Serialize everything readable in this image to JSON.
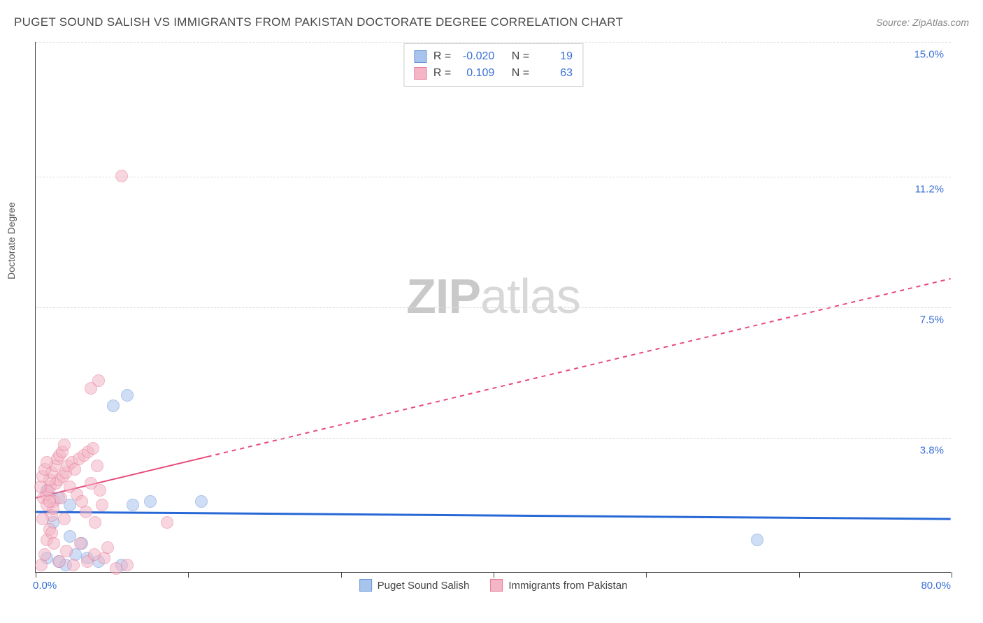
{
  "header": {
    "title": "PUGET SOUND SALISH VS IMMIGRANTS FROM PAKISTAN DOCTORATE DEGREE CORRELATION CHART",
    "source": "Source: ZipAtlas.com"
  },
  "chart": {
    "type": "scatter",
    "ylabel": "Doctorate Degree",
    "xlim": [
      0,
      80
    ],
    "ylim": [
      0,
      15
    ],
    "xlabel_min": "0.0%",
    "xlabel_max": "80.0%",
    "yticks": [
      {
        "value": 3.8,
        "label": "3.8%"
      },
      {
        "value": 7.5,
        "label": "7.5%"
      },
      {
        "value": 11.2,
        "label": "11.2%"
      },
      {
        "value": 15.0,
        "label": "15.0%"
      }
    ],
    "xticks_minor": [
      0,
      13.3,
      26.7,
      40,
      53.3,
      66.7,
      80
    ],
    "background_color": "#ffffff",
    "grid_color": "#dddddd",
    "series": [
      {
        "name": "Puget Sound Salish",
        "fill_color": "#a8c4ec",
        "fill_opacity": 0.55,
        "stroke_color": "#6a96d9",
        "trend_color": "#2768d6",
        "trend_width": 3,
        "trend_dash": "none",
        "trend": {
          "x1": 0,
          "y1": 1.7,
          "x2": 80,
          "y2": 1.5
        },
        "marker_radius": 9,
        "R": "-0.020",
        "N": "19",
        "points": [
          {
            "x": 1.0,
            "y": 0.4
          },
          {
            "x": 2.0,
            "y": 0.3
          },
          {
            "x": 2.6,
            "y": 0.2
          },
          {
            "x": 3.5,
            "y": 0.5
          },
          {
            "x": 3.0,
            "y": 1.0
          },
          {
            "x": 4.5,
            "y": 0.4
          },
          {
            "x": 5.5,
            "y": 0.3
          },
          {
            "x": 7.5,
            "y": 0.2
          },
          {
            "x": 1.5,
            "y": 1.4
          },
          {
            "x": 3.0,
            "y": 1.9
          },
          {
            "x": 8.5,
            "y": 1.9
          },
          {
            "x": 10.0,
            "y": 2.0
          },
          {
            "x": 14.5,
            "y": 2.0
          },
          {
            "x": 6.8,
            "y": 4.7
          },
          {
            "x": 8.0,
            "y": 5.0
          },
          {
            "x": 2.0,
            "y": 2.1
          },
          {
            "x": 1.0,
            "y": 2.3
          },
          {
            "x": 63.0,
            "y": 0.9
          },
          {
            "x": 4.0,
            "y": 0.8
          }
        ]
      },
      {
        "name": "Immigrants from Pakistan",
        "fill_color": "#f4b6c6",
        "fill_opacity": 0.55,
        "stroke_color": "#e77a9a",
        "trend_color": "#e84a7a",
        "trend_width": 2,
        "trend_dash": "6,6",
        "trend_solid_until_x": 15,
        "trend": {
          "x1": 0,
          "y1": 2.1,
          "x2": 80,
          "y2": 8.3
        },
        "marker_radius": 9,
        "R": "0.109",
        "N": "63",
        "points": [
          {
            "x": 0.5,
            "y": 0.2
          },
          {
            "x": 0.8,
            "y": 0.5
          },
          {
            "x": 1.0,
            "y": 0.9
          },
          {
            "x": 1.2,
            "y": 1.2
          },
          {
            "x": 1.4,
            "y": 1.6
          },
          {
            "x": 1.6,
            "y": 2.0
          },
          {
            "x": 0.7,
            "y": 2.1
          },
          {
            "x": 0.9,
            "y": 2.2
          },
          {
            "x": 1.1,
            "y": 2.3
          },
          {
            "x": 1.3,
            "y": 2.4
          },
          {
            "x": 1.5,
            "y": 1.8
          },
          {
            "x": 1.8,
            "y": 2.5
          },
          {
            "x": 2.0,
            "y": 2.6
          },
          {
            "x": 2.2,
            "y": 2.1
          },
          {
            "x": 2.4,
            "y": 2.7
          },
          {
            "x": 2.5,
            "y": 1.5
          },
          {
            "x": 2.6,
            "y": 2.8
          },
          {
            "x": 2.8,
            "y": 3.0
          },
          {
            "x": 3.0,
            "y": 2.4
          },
          {
            "x": 3.2,
            "y": 3.1
          },
          {
            "x": 3.4,
            "y": 2.9
          },
          {
            "x": 3.6,
            "y": 2.2
          },
          {
            "x": 3.8,
            "y": 3.2
          },
          {
            "x": 4.0,
            "y": 2.0
          },
          {
            "x": 4.2,
            "y": 3.3
          },
          {
            "x": 4.4,
            "y": 1.7
          },
          {
            "x": 4.6,
            "y": 3.4
          },
          {
            "x": 4.8,
            "y": 2.5
          },
          {
            "x": 5.0,
            "y": 3.5
          },
          {
            "x": 5.2,
            "y": 1.4
          },
          {
            "x": 5.4,
            "y": 3.0
          },
          {
            "x": 5.6,
            "y": 2.3
          },
          {
            "x": 5.8,
            "y": 1.9
          },
          {
            "x": 6.0,
            "y": 0.4
          },
          {
            "x": 6.3,
            "y": 0.7
          },
          {
            "x": 2.1,
            "y": 0.3
          },
          {
            "x": 2.7,
            "y": 0.6
          },
          {
            "x": 3.3,
            "y": 0.2
          },
          {
            "x": 3.9,
            "y": 0.8
          },
          {
            "x": 4.5,
            "y": 0.3
          },
          {
            "x": 5.1,
            "y": 0.5
          },
          {
            "x": 11.5,
            "y": 1.4
          },
          {
            "x": 7.0,
            "y": 0.1
          },
          {
            "x": 8.0,
            "y": 0.2
          },
          {
            "x": 0.6,
            "y": 1.5
          },
          {
            "x": 1.0,
            "y": 1.9
          },
          {
            "x": 1.2,
            "y": 2.6
          },
          {
            "x": 1.4,
            "y": 2.8
          },
          {
            "x": 1.7,
            "y": 3.0
          },
          {
            "x": 1.9,
            "y": 3.2
          },
          {
            "x": 2.1,
            "y": 3.3
          },
          {
            "x": 2.3,
            "y": 3.4
          },
          {
            "x": 2.5,
            "y": 3.6
          },
          {
            "x": 4.8,
            "y": 5.2
          },
          {
            "x": 5.5,
            "y": 5.4
          },
          {
            "x": 7.5,
            "y": 11.2
          },
          {
            "x": 0.4,
            "y": 2.4
          },
          {
            "x": 0.6,
            "y": 2.7
          },
          {
            "x": 0.8,
            "y": 2.9
          },
          {
            "x": 1.0,
            "y": 3.1
          },
          {
            "x": 1.2,
            "y": 2.0
          },
          {
            "x": 1.4,
            "y": 1.1
          },
          {
            "x": 1.6,
            "y": 0.8
          }
        ]
      }
    ],
    "stats_labels": {
      "R": "R =",
      "N": "N ="
    },
    "watermark": {
      "bold": "ZIP",
      "rest": "atlas"
    }
  }
}
